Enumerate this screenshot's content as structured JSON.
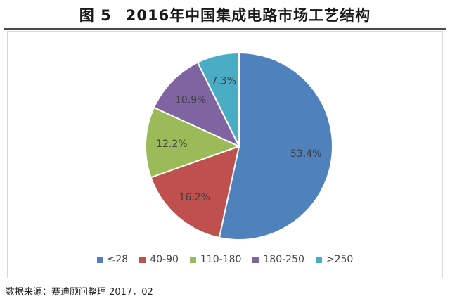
{
  "figure": {
    "label": "图 5",
    "title": "2016年中国集成电路市场工艺结构"
  },
  "source": "数据来源：赛迪顾问整理  2017，02",
  "chart_data": {
    "type": "pie",
    "title": "",
    "slices": [
      {
        "name": "≤28",
        "value": 53.4,
        "label": "53.4%",
        "color": "#4f81bd"
      },
      {
        "name": "40-90",
        "value": 16.2,
        "label": "16.2%",
        "color": "#c0504d"
      },
      {
        "name": "110-180",
        "value": 12.2,
        "label": "12.2%",
        "color": "#9bbb59"
      },
      {
        "name": "180-250",
        "value": 10.9,
        "label": "10.9%",
        "color": "#8064a2"
      },
      {
        "name": ">250",
        "value": 7.3,
        "label": "7.3%",
        "color": "#4bacc6"
      }
    ],
    "start_angle": "12 o'clock",
    "direction": "clockwise",
    "legend_position": "bottom"
  }
}
